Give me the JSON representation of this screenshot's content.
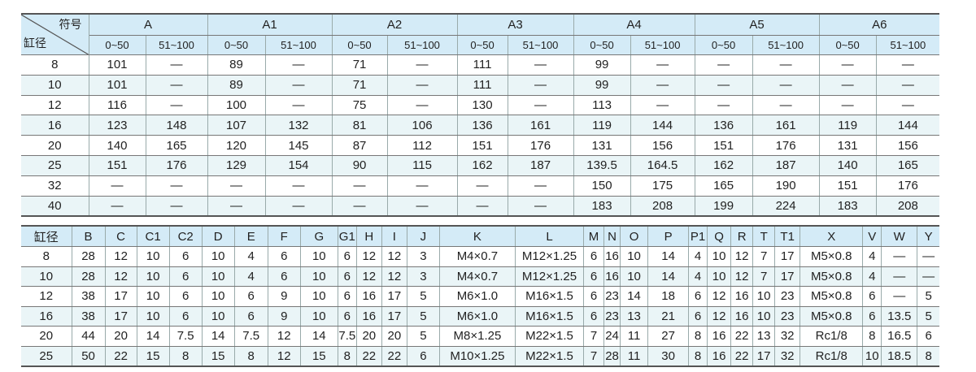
{
  "table1": {
    "corner_symbol": "符号",
    "corner_bore": "缸径",
    "groups": [
      "A",
      "A1",
      "A2",
      "A3",
      "A4",
      "A5",
      "A6"
    ],
    "ranges": [
      "0~50",
      "51~100"
    ],
    "rows": [
      [
        "8",
        "101",
        "—",
        "89",
        "—",
        "71",
        "—",
        "111",
        "—",
        "99",
        "—",
        "—",
        "—",
        "—",
        "—"
      ],
      [
        "10",
        "101",
        "—",
        "89",
        "—",
        "71",
        "—",
        "111",
        "—",
        "99",
        "—",
        "—",
        "—",
        "—",
        "—"
      ],
      [
        "12",
        "116",
        "—",
        "100",
        "—",
        "75",
        "—",
        "130",
        "—",
        "113",
        "—",
        "—",
        "—",
        "—",
        "—"
      ],
      [
        "16",
        "123",
        "148",
        "107",
        "132",
        "81",
        "106",
        "136",
        "161",
        "119",
        "144",
        "136",
        "161",
        "119",
        "144"
      ],
      [
        "20",
        "140",
        "165",
        "120",
        "145",
        "87",
        "112",
        "151",
        "176",
        "131",
        "156",
        "151",
        "176",
        "131",
        "156"
      ],
      [
        "25",
        "151",
        "176",
        "129",
        "154",
        "90",
        "115",
        "162",
        "187",
        "139.5",
        "164.5",
        "162",
        "187",
        "140",
        "165"
      ],
      [
        "32",
        "—",
        "—",
        "—",
        "—",
        "—",
        "—",
        "—",
        "—",
        "150",
        "175",
        "165",
        "190",
        "151",
        "176"
      ],
      [
        "40",
        "—",
        "—",
        "—",
        "—",
        "—",
        "—",
        "—",
        "—",
        "183",
        "208",
        "199",
        "224",
        "183",
        "208"
      ]
    ]
  },
  "table2": {
    "headers": [
      "缸径",
      "B",
      "C",
      "C1",
      "C2",
      "D",
      "E",
      "F",
      "G",
      "G1",
      "H",
      "I",
      "J",
      "K",
      "L",
      "M",
      "N",
      "O",
      "P",
      "P1",
      "Q",
      "R",
      "T",
      "T1",
      "X",
      "V",
      "W",
      "Y"
    ],
    "rows": [
      [
        "8",
        "28",
        "12",
        "10",
        "6",
        "10",
        "4",
        "6",
        "10",
        "6",
        "12",
        "12",
        "3",
        "M4×0.7",
        "M12×1.25",
        "6",
        "16",
        "10",
        "14",
        "4",
        "10",
        "12",
        "7",
        "17",
        "M5×0.8",
        "4",
        "—",
        "—"
      ],
      [
        "10",
        "28",
        "12",
        "10",
        "6",
        "10",
        "4",
        "6",
        "10",
        "6",
        "12",
        "12",
        "3",
        "M4×0.7",
        "M12×1.25",
        "6",
        "16",
        "10",
        "14",
        "4",
        "10",
        "12",
        "7",
        "17",
        "M5×0.8",
        "4",
        "—",
        "—"
      ],
      [
        "12",
        "38",
        "17",
        "10",
        "6",
        "10",
        "6",
        "9",
        "10",
        "6",
        "16",
        "17",
        "5",
        "M6×1.0",
        "M16×1.5",
        "6",
        "23",
        "14",
        "18",
        "6",
        "12",
        "16",
        "10",
        "23",
        "M5×0.8",
        "6",
        "—",
        "5"
      ],
      [
        "16",
        "38",
        "17",
        "10",
        "6",
        "10",
        "6",
        "9",
        "10",
        "6",
        "16",
        "17",
        "5",
        "M6×1.0",
        "M16×1.5",
        "6",
        "23",
        "13",
        "21",
        "6",
        "12",
        "16",
        "10",
        "23",
        "M5×0.8",
        "6",
        "13.5",
        "5"
      ],
      [
        "20",
        "44",
        "20",
        "14",
        "7.5",
        "14",
        "7.5",
        "12",
        "14",
        "7.5",
        "20",
        "20",
        "5",
        "M8×1.25",
        "M22×1.5",
        "7",
        "24",
        "11",
        "27",
        "8",
        "16",
        "22",
        "13",
        "32",
        "Rc1/8",
        "8",
        "16.5",
        "6"
      ],
      [
        "25",
        "50",
        "22",
        "15",
        "8",
        "15",
        "8",
        "12",
        "15",
        "8",
        "22",
        "22",
        "6",
        "M10×1.25",
        "M22×1.5",
        "7",
        "28",
        "11",
        "30",
        "8",
        "16",
        "22",
        "17",
        "32",
        "Rc1/8",
        "10",
        "18.5",
        "8"
      ]
    ]
  }
}
